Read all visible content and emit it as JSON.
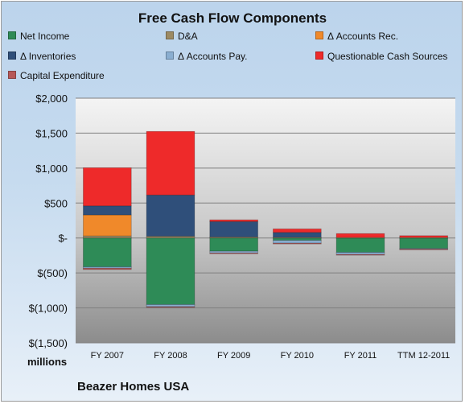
{
  "chart_data": {
    "type": "bar",
    "stacked": true,
    "title": "Free Cash Flow Components",
    "units_label": "millions",
    "company": "Beazer Homes USA",
    "categories": [
      "FY 2007",
      "FY 2008",
      "FY 2009",
      "FY 2010",
      "FY 2011",
      "TTM 12-2011"
    ],
    "ylim": [
      -1500,
      2000
    ],
    "yticks": [
      2000,
      1500,
      1000,
      500,
      0,
      -500,
      -1000,
      -1500
    ],
    "ytick_labels": [
      "$2,000",
      "$1,500",
      "$1,000",
      "$500",
      "$-",
      "$(500)",
      "$(1,000)",
      "$(1,500)"
    ],
    "legend_position": "top",
    "grid": true,
    "series": [
      {
        "name": "Net Income",
        "color": "#2e8b57",
        "values": [
          -412,
          -952,
          -189,
          -34,
          -205,
          -150
        ]
      },
      {
        "name": "D&A",
        "color": "#9c8a63",
        "values": [
          30,
          25,
          15,
          10,
          8,
          8
        ]
      },
      {
        "name": "Δ Accounts Rec.",
        "color": "#f0892a",
        "values": [
          300,
          0,
          0,
          0,
          0,
          0
        ]
      },
      {
        "name": "Δ Inventories",
        "color": "#2f4f7a",
        "values": [
          130,
          590,
          220,
          70,
          0,
          0
        ]
      },
      {
        "name": "Δ Accounts Pay.",
        "color": "#8aaed0",
        "values": [
          -20,
          -30,
          -25,
          -40,
          -30,
          -8
        ]
      },
      {
        "name": "Questionable Cash Sources",
        "color": "#ee2a2a",
        "values": [
          545,
          910,
          25,
          50,
          55,
          25
        ]
      },
      {
        "name": "Capital Expenditure",
        "color": "#b65858",
        "values": [
          -20,
          -10,
          -5,
          -5,
          -5,
          -5
        ]
      }
    ]
  }
}
